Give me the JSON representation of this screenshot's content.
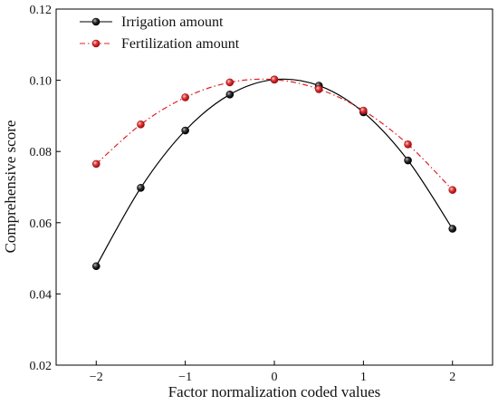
{
  "chart_data": {
    "type": "line",
    "xlabel": "Factor normalization coded values",
    "ylabel": "Comprehensive score",
    "xlim": [
      -2.45,
      2.45
    ],
    "ylim": [
      0.02,
      0.12
    ],
    "xticks": [
      -2,
      -1,
      0,
      1,
      2
    ],
    "xtick_labels": [
      "−2",
      "−1",
      "0",
      "1",
      "2"
    ],
    "yticks": [
      0.02,
      0.04,
      0.06,
      0.08,
      0.1,
      0.12
    ],
    "ytick_labels": [
      "0.02",
      "0.04",
      "0.06",
      "0.08",
      "0.10",
      "0.12"
    ],
    "grid": false,
    "legend_position": "top-left",
    "series": [
      {
        "name": "Irrigation amount",
        "color": "#000000",
        "line_style": "solid",
        "marker_color": "#222222",
        "x": [
          -2,
          -1.5,
          -1,
          -0.5,
          0,
          0.5,
          1,
          1.5,
          2
        ],
        "y": [
          0.0478,
          0.0698,
          0.0859,
          0.096,
          0.1002,
          0.0985,
          0.091,
          0.0775,
          0.0583
        ]
      },
      {
        "name": "Fertilization amount",
        "color": "#e0202a",
        "line_style": "dash-dot",
        "marker_color": "#d7262e",
        "x": [
          -2,
          -1.5,
          -1,
          -0.5,
          0,
          0.5,
          1,
          1.5,
          2
        ],
        "y": [
          0.0765,
          0.0876,
          0.0952,
          0.0994,
          0.1002,
          0.0975,
          0.0915,
          0.082,
          0.0692
        ]
      }
    ]
  }
}
